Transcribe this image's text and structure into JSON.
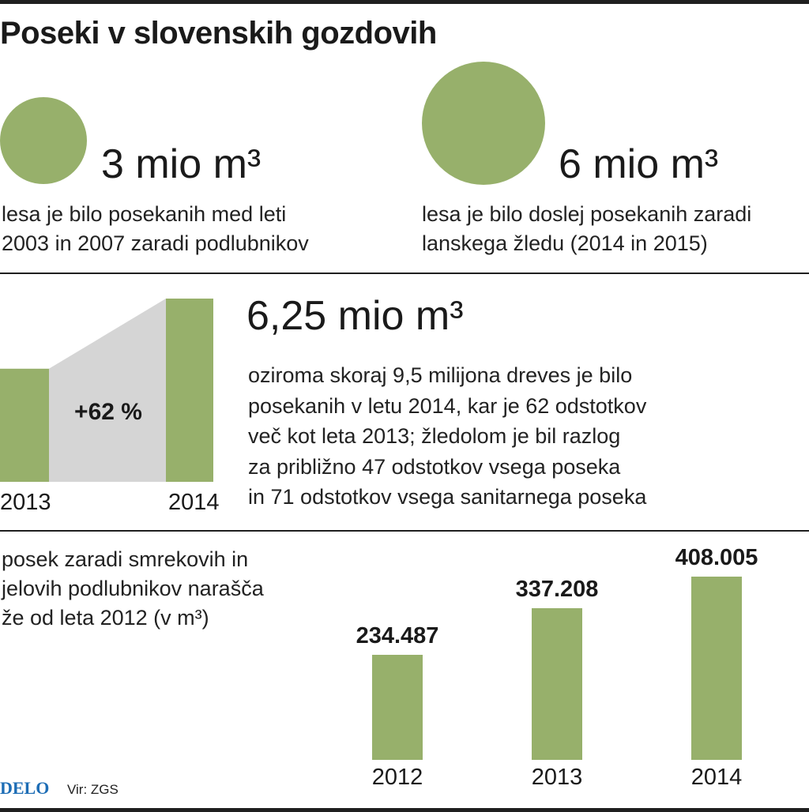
{
  "title": "Poseki v slovenskih gozdovih",
  "colors": {
    "green": "#97b06b",
    "gray": "#d5d5d5",
    "rule": "#1f1f1f",
    "brand": "#1d6db5"
  },
  "stat1": {
    "value": "3 mio m³",
    "description": "lesa je bilo posekanih med leti\n2003 in 2007 zaradi podlubnikov"
  },
  "stat2": {
    "value": "6 mio m³",
    "description": "lesa je bilo doslej posekanih zaradi\nlanskega žledu (2014 in 2015)"
  },
  "comparison": {
    "change_label": "+62 %",
    "value": "6,25 mio m³",
    "description": "oziroma skoraj 9,5 milijona dreves je bilo\nposekanih v letu 2014, kar je 62 odstotkov\nveč kot leta 2013; žledolom je bil razlog\nza približno 47 odstotkov vsega poseka\nin 71 odstotkov vsega sanitarnega poseka"
  },
  "bar_section": {
    "description": "posek zaradi smrekovih in\njelovih podlubnikov narašča\nže od leta 2012 (v m³)"
  },
  "chart_data": [
    {
      "type": "bar",
      "categories": [
        "2013",
        "2014"
      ],
      "values": [
        100,
        162
      ],
      "annotation": "+62 %"
    },
    {
      "type": "bar",
      "categories": [
        "2012",
        "2013",
        "2014"
      ],
      "values": [
        234487,
        337208,
        408005
      ],
      "value_labels": [
        "234.487",
        "337.208",
        "408.005"
      ]
    }
  ],
  "footer": {
    "brand": "DELO",
    "source": "Vir: ZGS"
  }
}
